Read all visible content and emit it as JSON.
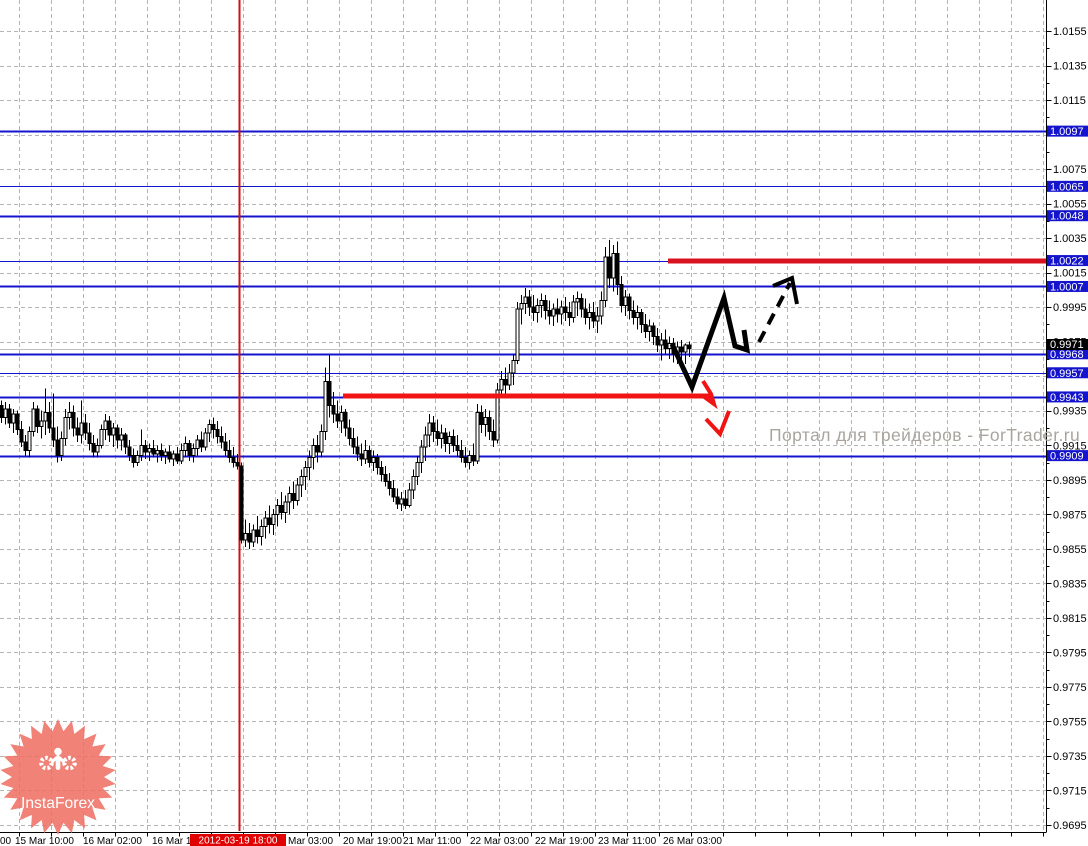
{
  "watermark": {
    "text": "Портал для трейдеров - ForTrader.ru",
    "color": "#a9a59d"
  },
  "logo": {
    "text": "InstaForex",
    "fill": "#ee7166",
    "text_color": "#ffffff"
  },
  "colors": {
    "grid": "#b4b4b4",
    "level_blue": "#1414cc",
    "label_box_blue": "#1414cc",
    "axis_line": "#000000",
    "current_line": "#bfbfbf",
    "current_box": "#000000",
    "vline_red": "#cc1111",
    "time_selected_bg": "#e00000",
    "candle": "#000000",
    "candle_bull_fill": "#ffffff"
  },
  "price_axis": {
    "plain_ticks": [
      "1.0155",
      "1.0135",
      "1.0115",
      "1.0075",
      "1.0055",
      "1.0035",
      "1.0015",
      "0.9995",
      "0.9975",
      "0.9935",
      "0.9915",
      "0.9895",
      "0.9875",
      "0.9855",
      "0.9835",
      "0.9815",
      "0.9795",
      "0.9775",
      "0.9755",
      "0.9735",
      "0.9715",
      "0.9695"
    ],
    "level_ticks": [
      {
        "text": "1.0097",
        "weight": 2
      },
      {
        "text": "1.0065",
        "weight": 1
      },
      {
        "text": "1.0048",
        "weight": 2
      },
      {
        "text": "1.0022",
        "weight": 1
      },
      {
        "text": "1.0007",
        "weight": 2
      },
      {
        "text": "0.9968",
        "weight": 2
      },
      {
        "text": "0.9957",
        "weight": 1
      },
      {
        "text": "0.9943",
        "weight": 2
      },
      {
        "text": "0.9909",
        "weight": 2
      }
    ],
    "current": {
      "text": "0.9971",
      "price": 0.9971
    }
  },
  "time_axis": {
    "labels": [
      {
        "x": 0,
        "text": "00"
      },
      {
        "x": 15,
        "text": "15 Mar 10:00"
      },
      {
        "x": 83,
        "text": "16 Mar 02:00"
      },
      {
        "x": 152,
        "text": "16 Mar 18:"
      },
      {
        "x": 288,
        "text": "Mar 03:00"
      },
      {
        "x": 343,
        "text": "20 Mar 19:00"
      },
      {
        "x": 403,
        "text": "21 Mar 11:00"
      },
      {
        "x": 470,
        "text": "22 Mar 03:00"
      },
      {
        "x": 535,
        "text": "22 Mar 19:00"
      },
      {
        "x": 598,
        "text": "23 Mar 11:00"
      },
      {
        "x": 663,
        "text": "26 Mar 03:00"
      }
    ],
    "selected": {
      "x": 190,
      "width": 96,
      "text": "2012-03-19 18:00"
    }
  },
  "vline_x": 239,
  "chart_data": {
    "type": "candlestick",
    "ylim": [
      0.9695,
      1.0155
    ],
    "y_tick_step": 0.002,
    "grid": true,
    "levels": [
      1.0097,
      1.0065,
      1.0048,
      1.0022,
      1.0007,
      0.9968,
      0.9957,
      0.9943,
      0.9909
    ],
    "current_price": 0.9971,
    "selected_time": "2012-03-19 18:00",
    "bars": [
      [
        0.9941,
        0.9928,
        0.9938,
        0.9931
      ],
      [
        0.994,
        0.9927,
        0.9931,
        0.9936
      ],
      [
        0.9939,
        0.9925,
        0.9936,
        0.9928
      ],
      [
        0.9936,
        0.9922,
        0.9928,
        0.9933
      ],
      [
        0.9935,
        0.9921,
        0.9933,
        0.9924
      ],
      [
        0.9929,
        0.9914,
        0.9924,
        0.9917
      ],
      [
        0.9921,
        0.9909,
        0.9917,
        0.9912
      ],
      [
        0.9926,
        0.9908,
        0.9912,
        0.9923
      ],
      [
        0.994,
        0.992,
        0.9923,
        0.9936
      ],
      [
        0.9938,
        0.9922,
        0.9936,
        0.9926
      ],
      [
        0.9935,
        0.9919,
        0.9926,
        0.9929
      ],
      [
        0.9948,
        0.9921,
        0.9929,
        0.9934
      ],
      [
        0.994,
        0.9922,
        0.9934,
        0.9925
      ],
      [
        0.9945,
        0.9914,
        0.9925,
        0.9918
      ],
      [
        0.9926,
        0.9905,
        0.9918,
        0.9909
      ],
      [
        0.9923,
        0.9906,
        0.9909,
        0.9919
      ],
      [
        0.9936,
        0.9915,
        0.9919,
        0.9931
      ],
      [
        0.994,
        0.9924,
        0.9931,
        0.9934
      ],
      [
        0.9938,
        0.992,
        0.9934,
        0.9925
      ],
      [
        0.9931,
        0.9917,
        0.9925,
        0.9921
      ],
      [
        0.9941,
        0.9916,
        0.9921,
        0.9928
      ],
      [
        0.9933,
        0.9918,
        0.9928,
        0.9922
      ],
      [
        0.9928,
        0.9912,
        0.9922,
        0.9916
      ],
      [
        0.9921,
        0.9908,
        0.9916,
        0.9911
      ],
      [
        0.9919,
        0.9908,
        0.9911,
        0.9915
      ],
      [
        0.9927,
        0.9913,
        0.9915,
        0.9924
      ],
      [
        0.9933,
        0.9918,
        0.9924,
        0.9929
      ],
      [
        0.9932,
        0.9917,
        0.9929,
        0.9921
      ],
      [
        0.9928,
        0.9914,
        0.9921,
        0.9925
      ],
      [
        0.9927,
        0.9913,
        0.9925,
        0.9918
      ],
      [
        0.9925,
        0.9912,
        0.9918,
        0.9921
      ],
      [
        0.9922,
        0.991,
        0.9921,
        0.9914
      ],
      [
        0.9918,
        0.9906,
        0.9914,
        0.9909
      ],
      [
        0.9913,
        0.9902,
        0.9909,
        0.9905
      ],
      [
        0.9912,
        0.9903,
        0.9905,
        0.9909
      ],
      [
        0.9924,
        0.9906,
        0.9909,
        0.9915
      ],
      [
        0.9918,
        0.9907,
        0.9915,
        0.9911
      ],
      [
        0.9916,
        0.9906,
        0.9911,
        0.9913
      ],
      [
        0.9918,
        0.9908,
        0.9913,
        0.991
      ],
      [
        0.9915,
        0.9905,
        0.991,
        0.9912
      ],
      [
        0.9916,
        0.9906,
        0.9912,
        0.9909
      ],
      [
        0.9913,
        0.9904,
        0.9909,
        0.9911
      ],
      [
        0.9915,
        0.9905,
        0.9911,
        0.9907
      ],
      [
        0.9912,
        0.9903,
        0.9907,
        0.991
      ],
      [
        0.9914,
        0.9904,
        0.991,
        0.9906
      ],
      [
        0.9916,
        0.9904,
        0.9906,
        0.9912
      ],
      [
        0.992,
        0.9908,
        0.9912,
        0.9916
      ],
      [
        0.9918,
        0.9906,
        0.9916,
        0.9909
      ],
      [
        0.9916,
        0.9905,
        0.9909,
        0.9913
      ],
      [
        0.9921,
        0.9909,
        0.9913,
        0.9918
      ],
      [
        0.9923,
        0.9911,
        0.9918,
        0.9914
      ],
      [
        0.9925,
        0.9912,
        0.9914,
        0.9922
      ],
      [
        0.993,
        0.9917,
        0.9922,
        0.9927
      ],
      [
        0.9931,
        0.9919,
        0.9927,
        0.9924
      ],
      [
        0.9929,
        0.9916,
        0.9924,
        0.992
      ],
      [
        0.9926,
        0.9913,
        0.992,
        0.9917
      ],
      [
        0.9922,
        0.9909,
        0.9917,
        0.9912
      ],
      [
        0.9918,
        0.9905,
        0.9912,
        0.9908
      ],
      [
        0.9914,
        0.9902,
        0.9908,
        0.9905
      ],
      [
        0.991,
        0.9901,
        0.9905,
        0.9903
      ],
      [
        0.9905,
        0.9858,
        0.9903,
        0.986
      ],
      [
        0.9872,
        0.9856,
        0.986,
        0.9864
      ],
      [
        0.987,
        0.9855,
        0.9864,
        0.9859
      ],
      [
        0.9869,
        0.9856,
        0.9859,
        0.9866
      ],
      [
        0.9874,
        0.9858,
        0.9866,
        0.9862
      ],
      [
        0.9872,
        0.9857,
        0.9862,
        0.9868
      ],
      [
        0.9877,
        0.9861,
        0.9868,
        0.9873
      ],
      [
        0.988,
        0.9864,
        0.9873,
        0.9869
      ],
      [
        0.9878,
        0.9863,
        0.9869,
        0.9875
      ],
      [
        0.9884,
        0.9868,
        0.9875,
        0.988
      ],
      [
        0.9888,
        0.9872,
        0.988,
        0.9876
      ],
      [
        0.9886,
        0.987,
        0.9876,
        0.9882
      ],
      [
        0.9891,
        0.9875,
        0.9882,
        0.9887
      ],
      [
        0.9894,
        0.9878,
        0.9887,
        0.9883
      ],
      [
        0.9896,
        0.988,
        0.9883,
        0.9892
      ],
      [
        0.9901,
        0.9885,
        0.9892,
        0.9897
      ],
      [
        0.9906,
        0.9889,
        0.9897,
        0.9902
      ],
      [
        0.9912,
        0.9895,
        0.9902,
        0.9908
      ],
      [
        0.9919,
        0.9901,
        0.9908,
        0.9915
      ],
      [
        0.9921,
        0.9905,
        0.9915,
        0.9911
      ],
      [
        0.9927,
        0.9908,
        0.9911,
        0.9923
      ],
      [
        0.996,
        0.9918,
        0.9923,
        0.9952
      ],
      [
        0.9967,
        0.9931,
        0.9952,
        0.9938
      ],
      [
        0.9946,
        0.9928,
        0.9938,
        0.9933
      ],
      [
        0.9941,
        0.9925,
        0.9933,
        0.9929
      ],
      [
        0.9938,
        0.9922,
        0.9929,
        0.9934
      ],
      [
        0.9936,
        0.992,
        0.9934,
        0.9925
      ],
      [
        0.993,
        0.9915,
        0.9925,
        0.9919
      ],
      [
        0.9925,
        0.991,
        0.9919,
        0.9914
      ],
      [
        0.992,
        0.9906,
        0.9914,
        0.991
      ],
      [
        0.9916,
        0.9903,
        0.991,
        0.9907
      ],
      [
        0.9918,
        0.9904,
        0.9907,
        0.9912
      ],
      [
        0.9915,
        0.9902,
        0.9912,
        0.9905
      ],
      [
        0.9912,
        0.99,
        0.9905,
        0.9908
      ],
      [
        0.991,
        0.9898,
        0.9908,
        0.9902
      ],
      [
        0.9906,
        0.9894,
        0.9902,
        0.9898
      ],
      [
        0.9903,
        0.9891,
        0.9898,
        0.9894
      ],
      [
        0.9899,
        0.9886,
        0.9894,
        0.989
      ],
      [
        0.9895,
        0.9882,
        0.989,
        0.9885
      ],
      [
        0.989,
        0.9878,
        0.9885,
        0.9881
      ],
      [
        0.9888,
        0.9877,
        0.9881,
        0.9884
      ],
      [
        0.9889,
        0.9878,
        0.9884,
        0.988
      ],
      [
        0.9893,
        0.9879,
        0.988,
        0.9889
      ],
      [
        0.9901,
        0.9884,
        0.9889,
        0.9897
      ],
      [
        0.9909,
        0.9892,
        0.9897,
        0.9905
      ],
      [
        0.9918,
        0.9899,
        0.9905,
        0.9914
      ],
      [
        0.9926,
        0.9906,
        0.9914,
        0.9921
      ],
      [
        0.9933,
        0.9914,
        0.9921,
        0.9928
      ],
      [
        0.9932,
        0.9917,
        0.9928,
        0.9923
      ],
      [
        0.993,
        0.9915,
        0.9923,
        0.9919
      ],
      [
        0.9927,
        0.9913,
        0.9919,
        0.9922
      ],
      [
        0.9925,
        0.9911,
        0.9922,
        0.9916
      ],
      [
        0.9923,
        0.991,
        0.9916,
        0.992
      ],
      [
        0.9924,
        0.9911,
        0.992,
        0.9915
      ],
      [
        0.9921,
        0.9908,
        0.9915,
        0.9912
      ],
      [
        0.9918,
        0.9905,
        0.9912,
        0.9908
      ],
      [
        0.9914,
        0.9902,
        0.9908,
        0.9905
      ],
      [
        0.9912,
        0.9901,
        0.9905,
        0.9909
      ],
      [
        0.9916,
        0.9903,
        0.9909,
        0.9906
      ],
      [
        0.9939,
        0.9904,
        0.9906,
        0.9934
      ],
      [
        0.9938,
        0.9922,
        0.9934,
        0.9927
      ],
      [
        0.9936,
        0.992,
        0.9927,
        0.9931
      ],
      [
        0.9935,
        0.9918,
        0.9931,
        0.9923
      ],
      [
        0.993,
        0.9914,
        0.9923,
        0.9918
      ],
      [
        0.9951,
        0.9916,
        0.9918,
        0.9947
      ],
      [
        0.9958,
        0.9942,
        0.9947,
        0.9953
      ],
      [
        0.996,
        0.9945,
        0.9953,
        0.995
      ],
      [
        0.9962,
        0.9947,
        0.995,
        0.9957
      ],
      [
        0.9968,
        0.995,
        0.9957,
        0.9964
      ],
      [
        0.9998,
        0.9962,
        0.9964,
        0.9994
      ],
      [
        1.0002,
        0.9985,
        0.9994,
        0.9997
      ],
      [
        1.0006,
        0.9991,
        0.9997,
        1.0001
      ],
      [
        1.0005,
        0.999,
        1.0001,
        0.9995
      ],
      [
        1.0002,
        0.9987,
        0.9995,
        0.9992
      ],
      [
        1.0,
        0.9986,
        0.9992,
        0.9996
      ],
      [
        1.0003,
        0.9989,
        0.9996,
        0.9999
      ],
      [
        1.0002,
        0.9988,
        0.9999,
        0.9993
      ],
      [
        0.9999,
        0.9985,
        0.9993,
        0.999
      ],
      [
        0.9997,
        0.9984,
        0.999,
        0.9994
      ],
      [
        1.0,
        0.9986,
        0.9994,
        0.9991
      ],
      [
        0.9999,
        0.9985,
        0.9991,
        0.9995
      ],
      [
        1.0001,
        0.9987,
        0.9995,
        0.9992
      ],
      [
        0.9998,
        0.9984,
        0.9992,
        0.9989
      ],
      [
        1.0002,
        0.9986,
        0.9989,
        0.9998
      ],
      [
        1.0004,
        0.999,
        0.9998,
        1.0
      ],
      [
        1.0003,
        0.9989,
        1.0,
        0.9994
      ],
      [
        1.0,
        0.9985,
        0.9994,
        0.9989
      ],
      [
        0.9997,
        0.9982,
        0.9989,
        0.9992
      ],
      [
        0.9998,
        0.9983,
        0.9992,
        0.9987
      ],
      [
        0.9995,
        0.998,
        0.9987,
        0.999
      ],
      [
        1.0004,
        0.9985,
        0.999,
        0.9999
      ],
      [
        1.003,
        0.9995,
        0.9999,
        1.0024
      ],
      [
        1.0034,
        1.0006,
        1.0024,
        1.0012
      ],
      [
        1.0031,
        1.0004,
        1.0012,
        1.0026
      ],
      [
        1.0033,
        1.0002,
        1.0026,
        1.0008
      ],
      [
        1.0013,
        0.9992,
        1.0008,
        0.9996
      ],
      [
        1.0005,
        0.999,
        0.9996,
        1.0001
      ],
      [
        1.0003,
        0.9988,
        1.0001,
        0.9993
      ],
      [
        0.9999,
        0.9985,
        0.9993,
        0.9989
      ],
      [
        0.9996,
        0.9982,
        0.9989,
        0.9992
      ],
      [
        0.9994,
        0.998,
        0.9992,
        0.9985
      ],
      [
        0.9991,
        0.9977,
        0.9985,
        0.9981
      ],
      [
        0.9988,
        0.9975,
        0.9981,
        0.9984
      ],
      [
        0.9986,
        0.9973,
        0.9984,
        0.9978
      ],
      [
        0.9983,
        0.9969,
        0.9978,
        0.9973
      ],
      [
        0.998,
        0.9964,
        0.9973,
        0.9976
      ],
      [
        0.9982,
        0.9968,
        0.9976,
        0.9971
      ],
      [
        0.9978,
        0.9965,
        0.9971,
        0.9974
      ],
      [
        0.9977,
        0.9963,
        0.9974,
        0.9968
      ],
      [
        0.9975,
        0.9962,
        0.9968,
        0.9972
      ],
      [
        0.9976,
        0.9964,
        0.9972,
        0.9969
      ],
      [
        0.9974,
        0.9962,
        0.9969,
        0.9973
      ],
      [
        0.9975,
        0.9966,
        0.9973,
        0.9971
      ]
    ]
  },
  "annotations": [
    {
      "name": "red-trend-line",
      "color": "#f01414",
      "width": 5,
      "points": [
        [
          343,
          396
        ],
        [
          712,
          396
        ]
      ]
    },
    {
      "name": "crimson-level-line",
      "color": "#d8121f",
      "width": 5,
      "points": [
        [
          668,
          261
        ],
        [
          1046,
          261
        ]
      ]
    },
    {
      "name": "black-zigzag-arrow",
      "color": "#000000",
      "width": 5,
      "points": [
        [
          672,
          344
        ],
        [
          692,
          387
        ],
        [
          724,
          298
        ],
        [
          735,
          346
        ],
        [
          747,
          350
        ],
        [
          744,
          330
        ]
      ]
    },
    {
      "name": "black-dashed-arrow",
      "color": "#000000",
      "width": 4,
      "dash": "12 8",
      "points": [
        [
          759,
          342
        ],
        [
          790,
          283
        ]
      ]
    },
    {
      "name": "black-dashed-arrowhead",
      "color": "#000000",
      "width": 4,
      "points": [
        [
          773,
          286
        ],
        [
          792,
          278
        ],
        [
          797,
          304
        ]
      ]
    },
    {
      "name": "red-arrow-tail",
      "color": "#f01414",
      "width": 4,
      "points": [
        [
          703,
          381
        ],
        [
          711,
          394
        ],
        [
          714,
          404
        ],
        [
          703,
          396
        ]
      ]
    },
    {
      "name": "red-arrowhead",
      "color": "#f01414",
      "width": 4,
      "points": [
        [
          706,
          419
        ],
        [
          720,
          434
        ],
        [
          729,
          411
        ]
      ]
    }
  ]
}
